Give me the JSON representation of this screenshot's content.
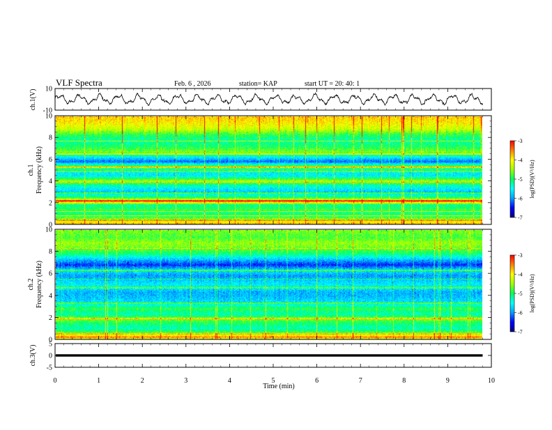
{
  "header": {
    "title": "VLF Spectra",
    "date": "Feb. 6 , 2026",
    "station": "station= KAP",
    "start": "start  UT =   20: 40: 1"
  },
  "chart_data": {
    "type": "heatmap",
    "x_axis": {
      "label": "Time  (min)",
      "range": [
        0,
        10
      ],
      "ticks": [
        "0",
        "1",
        "2",
        "3",
        "4",
        "5",
        "6",
        "7",
        "8",
        "9",
        "10"
      ],
      "data_end": 9.8
    },
    "waveform_panel": {
      "ylabel": "ch.1(V)",
      "yrange": [
        -10,
        10
      ],
      "ticks": [
        "10",
        "-10"
      ],
      "approx_amplitude": [
        -6,
        6
      ],
      "dominant_period_min": 0.45
    },
    "spectrogram_ch1": {
      "ylabel_1": "ch.1",
      "ylabel_2": "Frequency  (kHz)",
      "yrange_khz": [
        0,
        10
      ],
      "ticks": [
        "0",
        "2",
        "4",
        "6",
        "8",
        "10"
      ],
      "level_by_freq_khz": [
        [
          0.0,
          -3.6
        ],
        [
          0.3,
          -4.2
        ],
        [
          0.6,
          -4.8
        ],
        [
          1.0,
          -5.1
        ],
        [
          1.4,
          -4.9
        ],
        [
          1.8,
          -5.2
        ],
        [
          2.1,
          -3.6
        ],
        [
          2.5,
          -5.0
        ],
        [
          3.0,
          -5.8
        ],
        [
          3.6,
          -5.3
        ],
        [
          4.0,
          -4.4
        ],
        [
          4.5,
          -5.6
        ],
        [
          5.0,
          -5.5
        ],
        [
          5.3,
          -4.5
        ],
        [
          5.8,
          -6.2
        ],
        [
          6.3,
          -5.4
        ],
        [
          6.7,
          -4.6
        ],
        [
          7.2,
          -5.0
        ],
        [
          7.8,
          -5.2
        ],
        [
          8.3,
          -4.9
        ],
        [
          8.8,
          -4.3
        ],
        [
          9.3,
          -4.0
        ],
        [
          10.0,
          -3.8
        ]
      ],
      "narrowband_lines_khz": [
        0.4,
        0.8,
        1.2,
        2.2,
        2.9,
        3.9,
        4.9,
        5.3,
        6.5,
        7.7
      ]
    },
    "spectrogram_ch2": {
      "ylabel_1": "ch.2",
      "ylabel_2": "Frequency  (kHz)",
      "yrange_khz": [
        0,
        10
      ],
      "ticks": [
        "0",
        "2",
        "4",
        "6",
        "8",
        "10"
      ],
      "level_by_freq_khz": [
        [
          0.0,
          -4.5
        ],
        [
          0.2,
          -3.4
        ],
        [
          0.5,
          -4.6
        ],
        [
          1.0,
          -5.3
        ],
        [
          1.5,
          -5.0
        ],
        [
          1.9,
          -4.6
        ],
        [
          2.3,
          -5.3
        ],
        [
          2.8,
          -4.9
        ],
        [
          3.3,
          -5.6
        ],
        [
          3.8,
          -5.8
        ],
        [
          4.3,
          -5.9
        ],
        [
          4.8,
          -5.5
        ],
        [
          5.3,
          -5.7
        ],
        [
          5.8,
          -6.0
        ],
        [
          6.3,
          -5.6
        ],
        [
          6.8,
          -6.4
        ],
        [
          7.3,
          -5.8
        ],
        [
          7.8,
          -5.1
        ],
        [
          8.3,
          -4.7
        ],
        [
          8.8,
          -4.5
        ],
        [
          9.3,
          -4.8
        ],
        [
          10.0,
          -4.6
        ]
      ],
      "narrowband_lines_khz": [
        0.5,
        1.9,
        3.3,
        4.7,
        5.5,
        6.3,
        8.3
      ]
    },
    "colorbar": {
      "label": "log(PSD)(V²/Hz)",
      "range": [
        -7,
        -3
      ],
      "ticks": [
        "-3",
        "-4",
        "-5",
        "-6",
        "-7"
      ],
      "colors": [
        "#000080",
        "#0000ff",
        "#00a0ff",
        "#00ffff",
        "#00ff60",
        "#a0ff00",
        "#ffff00",
        "#ff8000",
        "#ff0000"
      ]
    },
    "ch3_panel": {
      "ylabel": "ch.3(V)",
      "yrange": [
        -5,
        5
      ],
      "ticks": [
        "5",
        "0",
        "-5"
      ],
      "band_level_v": [
        -0.5,
        0.5
      ]
    }
  }
}
